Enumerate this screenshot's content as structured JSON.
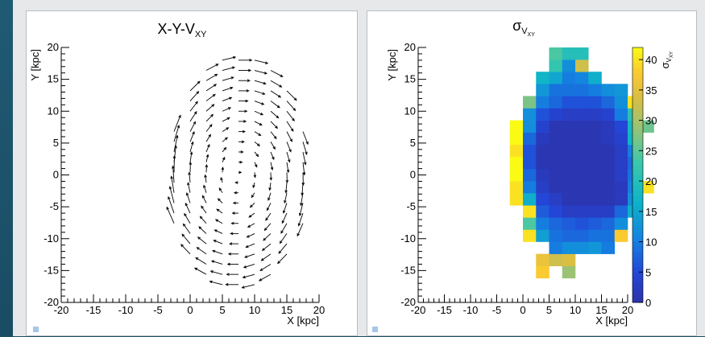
{
  "chart_data": [
    {
      "type": "quiver",
      "title": "X-Y-V",
      "title_subscript": "XY",
      "xlabel": "X [kpc]",
      "ylabel": "Y [kpc]",
      "xlim": [
        -20,
        20
      ],
      "ylim": [
        -20,
        20
      ],
      "x_ticks": [
        -20,
        -15,
        -10,
        -5,
        0,
        5,
        10,
        15,
        20
      ],
      "y_ticks": [
        -20,
        -15,
        -10,
        -5,
        0,
        5,
        10,
        15,
        20
      ],
      "x_tick_labels": [
        "-20",
        "-15",
        "-10",
        "-5",
        "0",
        "5",
        "10",
        "15",
        "20"
      ],
      "y_tick_labels": [
        "-20",
        "-15",
        "-10",
        "-5",
        "0",
        "5",
        "10",
        "15",
        "20"
      ],
      "grid": false,
      "vectors_description": "clockwise rotation field: eastward on top, southward on right, westward at bottom; arrows lie inside an ellipse centred near (7, 0)",
      "ellipse_center": [
        7.5,
        0
      ],
      "ellipse_radii": [
        11,
        19
      ]
    },
    {
      "type": "heatmap",
      "title": "σ",
      "title_subscript": "V",
      "title_subsubscript": "XY",
      "xlabel": "X [kpc]",
      "ylabel": "Y [kpc]",
      "xlim": [
        -20,
        20
      ],
      "ylim": [
        -20,
        20
      ],
      "x_ticks": [
        -20,
        -15,
        -10,
        -5,
        0,
        5,
        10,
        15,
        20
      ],
      "y_ticks": [
        -20,
        -15,
        -10,
        -5,
        0,
        5,
        10,
        15,
        20
      ],
      "x_tick_labels": [
        "-20",
        "-15",
        "-10",
        "-5",
        "0",
        "5",
        "10",
        "15",
        "20"
      ],
      "y_tick_labels": [
        "-20",
        "-15",
        "-10",
        "-5",
        "0",
        "5",
        "10",
        "15",
        "20"
      ],
      "colorbar": {
        "min": 0,
        "max": 42,
        "ticks": [
          0,
          5,
          10,
          15,
          20,
          25,
          30,
          35,
          40
        ],
        "tick_labels": [
          "0",
          "5",
          "10",
          "15",
          "20",
          "25",
          "30",
          "35",
          "40"
        ],
        "label": "σ",
        "label_subscript": "V",
        "label_subsubscript": "XY"
      },
      "bin_width": 2.5,
      "x_bin_start": -5,
      "y_bin_start": -20,
      "values": [
        [
          null,
          null,
          null,
          null,
          null,
          null,
          null,
          null,
          null,
          null,
          null,
          null
        ],
        [
          null,
          null,
          null,
          null,
          null,
          null,
          null,
          null,
          null,
          null,
          null,
          null
        ],
        [
          null,
          null,
          null,
          38,
          null,
          29,
          null,
          null,
          null,
          null,
          null,
          null
        ],
        [
          null,
          null,
          null,
          36,
          33,
          34,
          null,
          null,
          null,
          null,
          null,
          null
        ],
        [
          null,
          null,
          null,
          null,
          10,
          12,
          12,
          13,
          10,
          null,
          null,
          null
        ],
        [
          null,
          null,
          40,
          14,
          9,
          8,
          8,
          9,
          9,
          38,
          null,
          null
        ],
        [
          null,
          null,
          24,
          10,
          8,
          7,
          6,
          7,
          8,
          12,
          null,
          null
        ],
        [
          null,
          null,
          40,
          7,
          5,
          3,
          3,
          3,
          3,
          8,
          16,
          null
        ],
        [
          null,
          40,
          16,
          5,
          3,
          1,
          1,
          1,
          1,
          2,
          12,
          null
        ],
        [
          null,
          40,
          10,
          3,
          1,
          1,
          1,
          1,
          1,
          2,
          10,
          40
        ],
        [
          null,
          42,
          8,
          2,
          1,
          1,
          1,
          1,
          1,
          3,
          9,
          null
        ],
        [
          null,
          42,
          6,
          1,
          1,
          1,
          1,
          1,
          1,
          3,
          8,
          null
        ],
        [
          null,
          40,
          6,
          1,
          1,
          1,
          1,
          1,
          1,
          3,
          10,
          null
        ],
        [
          null,
          42,
          8,
          2,
          1,
          1,
          1,
          1,
          2,
          4,
          17,
          null
        ],
        [
          null,
          42,
          12,
          4,
          1,
          1,
          1,
          1,
          2,
          5,
          18,
          26
        ],
        [
          null,
          null,
          12,
          6,
          4,
          3,
          3,
          3,
          4,
          10,
          21,
          null
        ],
        [
          null,
          null,
          27,
          10,
          8,
          6,
          6,
          6,
          8,
          12,
          40,
          null
        ],
        [
          null,
          null,
          null,
          13,
          9,
          9,
          9,
          10,
          12,
          13,
          null,
          null
        ],
        [
          null,
          null,
          null,
          17,
          15,
          10,
          11,
          16,
          null,
          null,
          null,
          null
        ],
        [
          null,
          null,
          null,
          null,
          22,
          12,
          33,
          null,
          null,
          null,
          null,
          null
        ],
        [
          null,
          null,
          null,
          null,
          24,
          20,
          20,
          null,
          null,
          null,
          null,
          null
        ]
      ]
    }
  ]
}
